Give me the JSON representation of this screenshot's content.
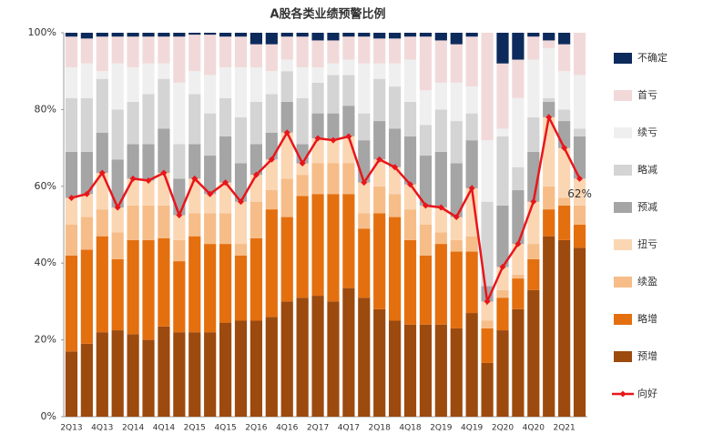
{
  "chart_data": {
    "type": "bar",
    "stacked": true,
    "title": "A股各类业绩预警比例",
    "categories": [
      "2Q13",
      null,
      "4Q13",
      null,
      "2Q14",
      null,
      "4Q14",
      null,
      "2Q15",
      null,
      "4Q15",
      null,
      "2Q16",
      null,
      "4Q16",
      null,
      "2Q17",
      null,
      "4Q17",
      null,
      "2Q18",
      null,
      "4Q18",
      null,
      "2Q19",
      null,
      "4Q19",
      null,
      "2Q20",
      null,
      "4Q20",
      null,
      "2Q21",
      null
    ],
    "ylim": [
      0,
      100
    ],
    "yticks": [
      {
        "value": 0,
        "label": "0%"
      },
      {
        "value": 20,
        "label": "20%"
      },
      {
        "value": 40,
        "label": "40%"
      },
      {
        "value": 60,
        "label": "60%"
      },
      {
        "value": 80,
        "label": "80%"
      },
      {
        "value": 100,
        "label": "100%"
      }
    ],
    "legend": "right",
    "series": [
      {
        "name": "预增",
        "color": "#9c4a0e",
        "values": [
          17,
          19,
          22,
          22.5,
          21.5,
          20,
          23.5,
          22,
          22,
          22,
          24.5,
          25,
          25,
          26,
          30,
          31,
          31.5,
          30,
          33.5,
          31,
          28,
          25,
          24,
          24,
          24,
          23,
          27,
          14,
          22.5,
          28,
          33,
          47,
          46,
          44
        ]
      },
      {
        "name": "略增",
        "color": "#e46f0f",
        "values": [
          25,
          24.5,
          25,
          18.5,
          24.5,
          26,
          23,
          18.5,
          25,
          23,
          20.5,
          17,
          21.5,
          28,
          22,
          26.5,
          26.5,
          28,
          24.5,
          18,
          25,
          27,
          22,
          18,
          21,
          20,
          16,
          9,
          8.5,
          8,
          8,
          7,
          9,
          6
        ]
      },
      {
        "name": "续盈",
        "color": "#f6bd88",
        "values": [
          8,
          8.5,
          7,
          7,
          9,
          9,
          8.5,
          5.5,
          6,
          8,
          8,
          3,
          9.5,
          5,
          10,
          5.5,
          8,
          8,
          8,
          4,
          7,
          6,
          8,
          8,
          3,
          3,
          4,
          2,
          2,
          1,
          4,
          6,
          2,
          5
        ]
      },
      {
        "name": "扭亏",
        "color": "#fbd6b3",
        "values": [
          7,
          6,
          9.5,
          6.5,
          7,
          6.5,
          8.5,
          6.5,
          9,
          5,
          8,
          11,
          7,
          8,
          12,
          3,
          6.5,
          6,
          7,
          8,
          7,
          7,
          6.5,
          5,
          6.5,
          6,
          12.5,
          5,
          6,
          8,
          11,
          18,
          13,
          7
        ]
      },
      {
        "name": "预减",
        "color": "#a5a5a5",
        "values": [
          12,
          11,
          10.5,
          12.5,
          9,
          9.5,
          11.5,
          9.5,
          9,
          10,
          12,
          10,
          8,
          7,
          8,
          5,
          6.5,
          7,
          8,
          11,
          10,
          10,
          12.5,
          13,
          14.5,
          14,
          12.5,
          4,
          16,
          14,
          13,
          4,
          7,
          11
        ]
      },
      {
        "name": "略减",
        "color": "#d4d4d4",
        "values": [
          14,
          14,
          14,
          13,
          11,
          13,
          13,
          9,
          13,
          11,
          10,
          12,
          11,
          10,
          8,
          12,
          8,
          10,
          8,
          7,
          11,
          11,
          9,
          8,
          11,
          11,
          7,
          22,
          18,
          6,
          9,
          1,
          3,
          2
        ]
      },
      {
        "name": "续亏",
        "color": "#efefef",
        "values": [
          8,
          9,
          2,
          12,
          9,
          8,
          4,
          16,
          6,
          10,
          8,
          13,
          9,
          6,
          3,
          8,
          4,
          3,
          4,
          13,
          4,
          6,
          11,
          9,
          7,
          10,
          7,
          16,
          2,
          18,
          15,
          13,
          10,
          14
        ]
      },
      {
        "name": "首亏",
        "color": "#f2d9d9",
        "values": [
          8,
          6.5,
          9,
          7,
          8,
          7,
          7,
          12,
          9.5,
          10.5,
          8,
          8,
          6,
          7,
          6,
          8,
          7,
          6,
          6,
          7,
          6.5,
          6.5,
          6,
          14,
          11,
          10,
          13,
          28,
          17,
          10,
          6,
          2,
          7,
          11
        ]
      },
      {
        "name": "不确定",
        "color": "#0d2a5c",
        "values": [
          1,
          1.5,
          1,
          1,
          1,
          1,
          1,
          1,
          0.5,
          0.5,
          1,
          1,
          3,
          3,
          1,
          1,
          2,
          2,
          1,
          1,
          1.5,
          1.5,
          1,
          1,
          2,
          3,
          1,
          0,
          8,
          7,
          1,
          2,
          3,
          0
        ]
      }
    ],
    "line_series": {
      "name": "向好",
      "color": "#e8161b",
      "values": [
        57,
        58,
        63.5,
        54.5,
        62,
        61.5,
        63.5,
        52.5,
        62,
        58,
        61,
        56,
        63,
        67,
        74,
        66,
        72.5,
        72,
        73,
        61,
        67,
        65,
        60.5,
        55,
        54.5,
        52,
        59.5,
        30,
        39,
        45,
        56,
        78,
        70,
        62
      ],
      "value_labels": [
        null,
        null,
        null,
        null,
        null,
        null,
        null,
        null,
        null,
        null,
        null,
        null,
        null,
        null,
        null,
        null,
        null,
        null,
        null,
        null,
        null,
        null,
        null,
        null,
        null,
        null,
        null,
        null,
        null,
        null,
        null,
        null,
        null,
        "62%"
      ]
    }
  }
}
